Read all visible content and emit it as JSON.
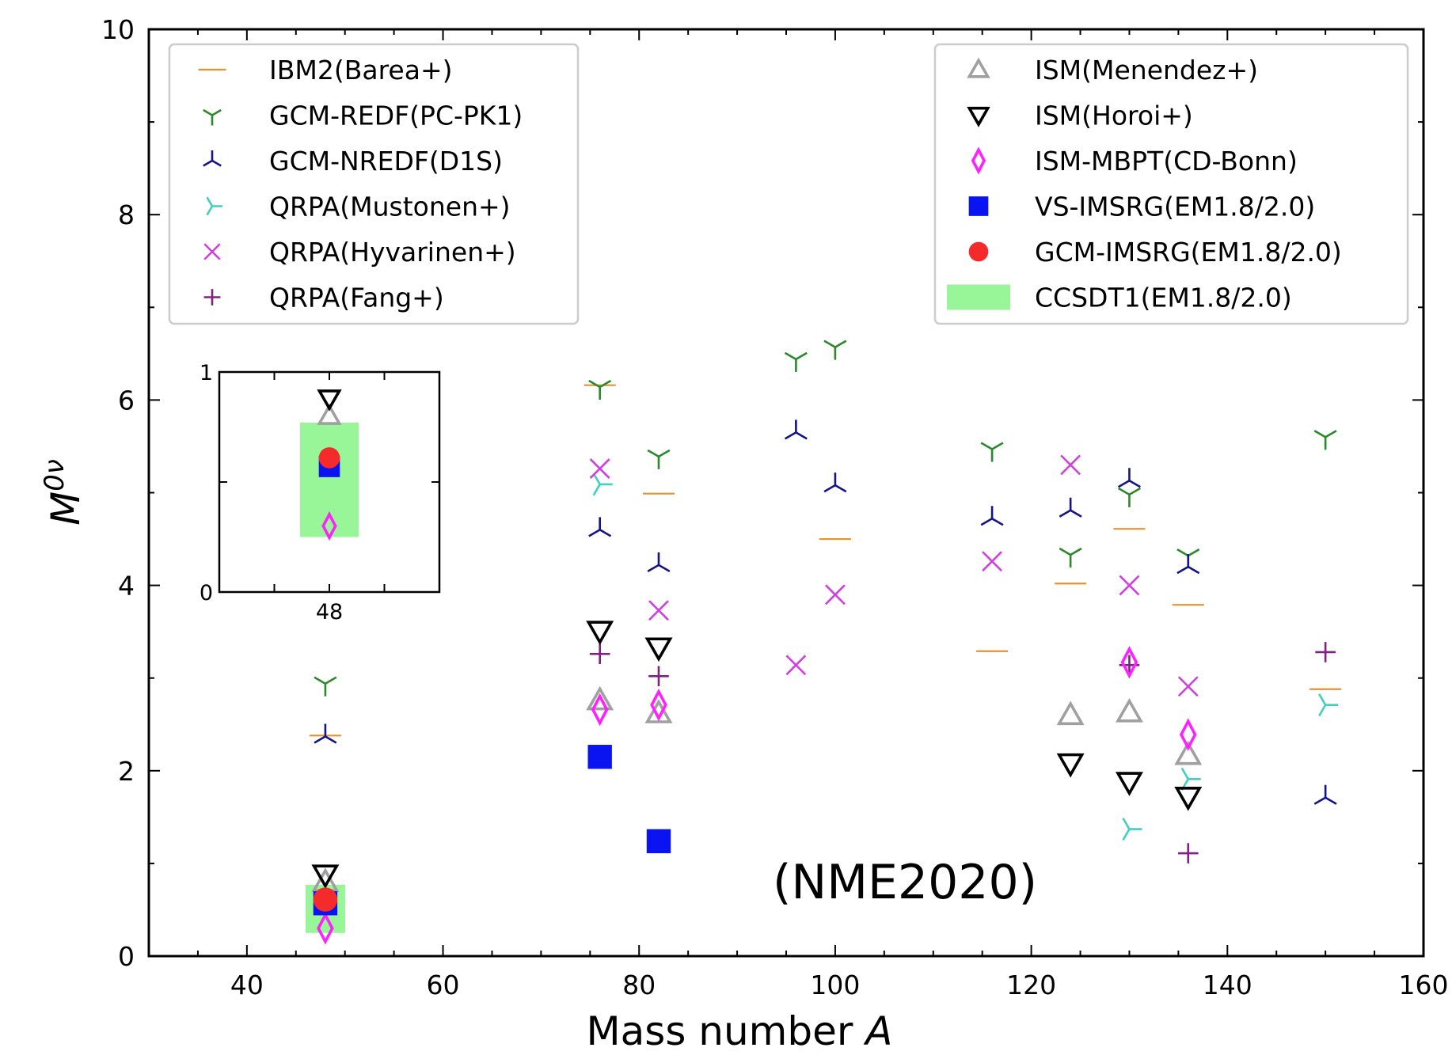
{
  "chart_data": {
    "type": "scatter",
    "xlabel": "Mass number A",
    "ylabel": "M0ν",
    "xlim": [
      30,
      160
    ],
    "ylim": [
      0,
      10
    ],
    "x_ticks": [
      40,
      60,
      80,
      100,
      120,
      140,
      160
    ],
    "y_ticks": [
      0,
      2,
      4,
      6,
      8,
      10
    ],
    "annotation": "(NME2020)",
    "grid": false,
    "legend_left_position": "upper-left",
    "legend_right_position": "upper-right",
    "series": [
      {
        "name": "IBM2(Barea+)",
        "marker": "hline",
        "color": "#e8922a",
        "legend": "left",
        "points": [
          [
            48,
            2.38
          ],
          [
            76,
            6.16
          ],
          [
            82,
            4.99
          ],
          [
            100,
            4.5
          ],
          [
            116,
            3.29
          ],
          [
            124,
            4.02
          ],
          [
            130,
            4.61
          ],
          [
            136,
            3.79
          ],
          [
            150,
            2.88
          ]
        ]
      },
      {
        "name": "GCM-REDF(PC-PK1)",
        "marker": "tri_down",
        "color": "#2a8a2a",
        "legend": "left",
        "points": [
          [
            48,
            2.94
          ],
          [
            76,
            6.14
          ],
          [
            82,
            5.39
          ],
          [
            96,
            6.44
          ],
          [
            100,
            6.57
          ],
          [
            116,
            5.47
          ],
          [
            124,
            4.33
          ],
          [
            130,
            4.98
          ],
          [
            136,
            4.32
          ],
          [
            150,
            5.6
          ]
        ]
      },
      {
        "name": "GCM-NREDF(D1S)",
        "marker": "tri_up",
        "color": "#14148a",
        "legend": "left",
        "points": [
          [
            48,
            2.37
          ],
          [
            76,
            4.6
          ],
          [
            82,
            4.22
          ],
          [
            96,
            5.65
          ],
          [
            100,
            5.08
          ],
          [
            116,
            4.72
          ],
          [
            124,
            4.81
          ],
          [
            130,
            5.13
          ],
          [
            136,
            4.2
          ],
          [
            150,
            1.71
          ]
        ]
      },
      {
        "name": "QRPA(Mustonen+)",
        "marker": "tri_left",
        "color": "#40d0c0",
        "legend": "left",
        "points": [
          [
            76,
            5.09
          ],
          [
            130,
            1.37
          ],
          [
            136,
            1.91
          ],
          [
            150,
            2.71
          ]
        ]
      },
      {
        "name": "QRPA(Hyvarinen+)",
        "marker": "x",
        "color": "#d040e0",
        "legend": "left",
        "points": [
          [
            76,
            5.26
          ],
          [
            82,
            3.73
          ],
          [
            96,
            3.14
          ],
          [
            100,
            3.9
          ],
          [
            116,
            4.26
          ],
          [
            124,
            5.3
          ],
          [
            130,
            4.0
          ],
          [
            136,
            2.91
          ]
        ]
      },
      {
        "name": "QRPA(Fang+)",
        "marker": "plus",
        "color": "#802080",
        "legend": "left",
        "points": [
          [
            76,
            3.26
          ],
          [
            82,
            3.02
          ],
          [
            130,
            3.14
          ],
          [
            136,
            1.11
          ],
          [
            150,
            3.28
          ]
        ]
      },
      {
        "name": "ISM(Menendez+)",
        "marker": "triangle_up",
        "color": "#a0a0a0",
        "legend": "right",
        "points": [
          [
            48,
            0.8
          ],
          [
            76,
            2.76
          ],
          [
            82,
            2.62
          ],
          [
            124,
            2.6
          ],
          [
            130,
            2.63
          ],
          [
            136,
            2.17
          ]
        ]
      },
      {
        "name": "ISM(Horoi+)",
        "marker": "triangle_down",
        "color": "#000000",
        "legend": "right",
        "points": [
          [
            48,
            0.88
          ],
          [
            76,
            3.51
          ],
          [
            82,
            3.33
          ],
          [
            124,
            2.08
          ],
          [
            130,
            1.88
          ],
          [
            136,
            1.72
          ]
        ]
      },
      {
        "name": "ISM-MBPT(CD-Bonn)",
        "marker": "diamond",
        "color": "#ff20ff",
        "legend": "right",
        "points": [
          [
            48,
            0.3
          ],
          [
            76,
            2.66
          ],
          [
            82,
            2.71
          ],
          [
            130,
            3.17
          ],
          [
            136,
            2.39
          ]
        ]
      },
      {
        "name": "VS-IMSRG(EM1.8/2.0)",
        "marker": "square",
        "color": "#0a14f0",
        "legend": "right",
        "points": [
          [
            48,
            0.57
          ],
          [
            76,
            2.15
          ],
          [
            82,
            1.24
          ]
        ]
      },
      {
        "name": "GCM-IMSRG(EM1.8/2.0)",
        "marker": "circle",
        "color": "#f52a2a",
        "legend": "right",
        "points": [
          [
            48,
            0.61
          ]
        ]
      },
      {
        "name": "CCSDT1(EM1.8/2.0)",
        "marker": "band",
        "color": "#98f698",
        "legend": "right",
        "points": [
          [
            48,
            0.25,
            0.77
          ]
        ]
      }
    ],
    "inset": {
      "xlim": [
        43,
        53
      ],
      "ylim": [
        0,
        1
      ],
      "x_ticks": [
        48
      ],
      "y_ticks": [
        0,
        1
      ]
    }
  }
}
